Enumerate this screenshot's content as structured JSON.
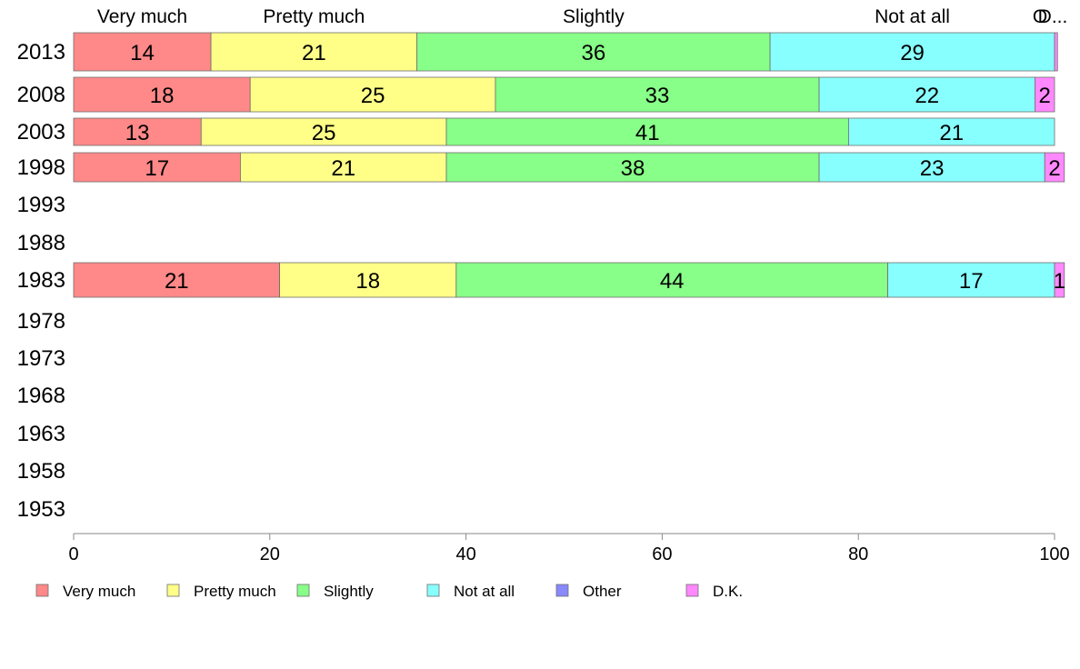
{
  "chart_data": {
    "type": "bar",
    "orientation": "horizontal",
    "stacked": true,
    "xlim": [
      0,
      100
    ],
    "x_ticks": [
      0,
      20,
      40,
      60,
      80,
      100
    ],
    "grid": false,
    "legend_position": "bottom-left",
    "categories": [
      "2013",
      "2008",
      "2003",
      "1998",
      "1993",
      "1988",
      "1983",
      "1978",
      "1973",
      "1968",
      "1963",
      "1958",
      "1953"
    ],
    "series": [
      {
        "name": "Very much",
        "color": "#ff8888",
        "values": [
          14,
          18,
          13,
          17,
          null,
          null,
          21,
          null,
          null,
          null,
          null,
          null,
          null
        ]
      },
      {
        "name": "Pretty much",
        "color": "#ffff88",
        "values": [
          21,
          25,
          25,
          21,
          null,
          null,
          18,
          null,
          null,
          null,
          null,
          null,
          null
        ]
      },
      {
        "name": "Slightly",
        "color": "#88ff88",
        "values": [
          36,
          33,
          41,
          38,
          null,
          null,
          44,
          null,
          null,
          null,
          null,
          null,
          null
        ]
      },
      {
        "name": "Not at all",
        "color": "#88ffff",
        "values": [
          29,
          22,
          21,
          23,
          null,
          null,
          17,
          null,
          null,
          null,
          null,
          null,
          null
        ]
      },
      {
        "name": "Other",
        "color": "#8888ff",
        "values": [
          0,
          0,
          0,
          0,
          null,
          null,
          0,
          null,
          null,
          null,
          null,
          null,
          null
        ]
      },
      {
        "name": "D.K.",
        "color": "#ff88ff",
        "values": [
          0.3,
          2,
          0,
          2,
          null,
          null,
          1,
          null,
          null,
          null,
          null,
          null,
          null
        ]
      }
    ],
    "top_labels": [
      "Very much",
      "Pretty much",
      "Slightly",
      "Not at all",
      "O",
      "D..."
    ]
  }
}
